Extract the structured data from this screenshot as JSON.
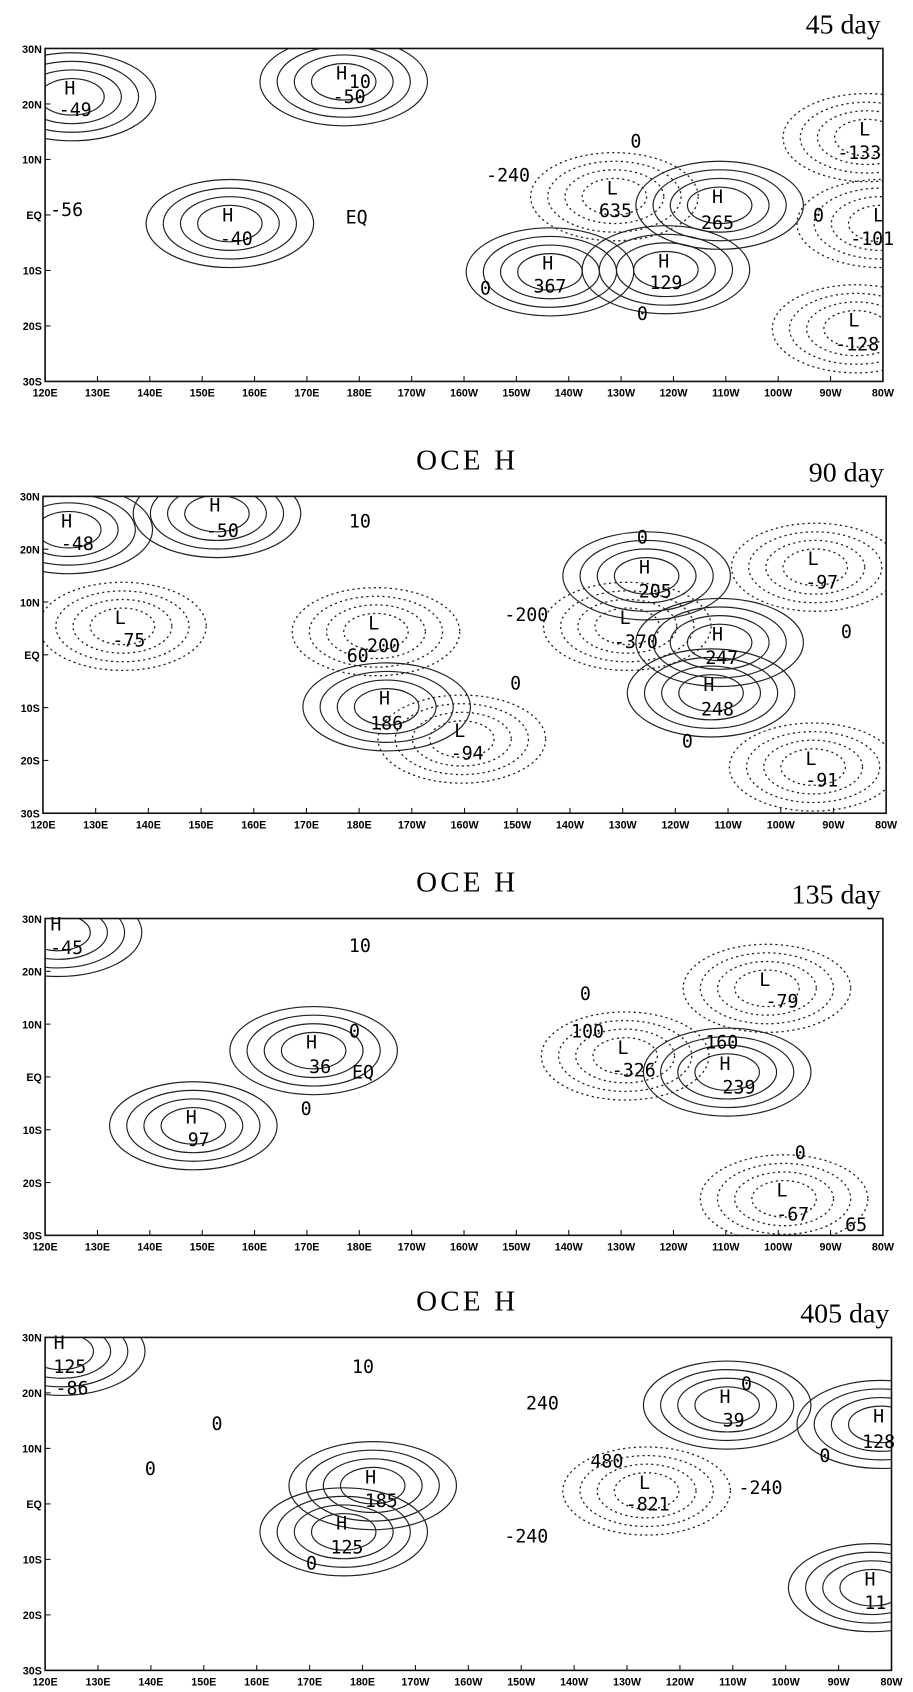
{
  "axis": {
    "xticks": [
      "120E",
      "130E",
      "140E",
      "150E",
      "160E",
      "170E",
      "180E",
      "170W",
      "160W",
      "150W",
      "140W",
      "130W",
      "120W",
      "110W",
      "100W",
      "90W",
      "80W"
    ],
    "yticks": [
      "30N",
      "20N",
      "10N",
      "EQ",
      "10S",
      "20S",
      "30S"
    ]
  },
  "panels": [
    {
      "day": "45 day",
      "labels": [
        "H",
        -49,
        "H",
        10,
        -50,
        "EQ",
        "H",
        -40,
        "L",
        -133,
        "L",
        -101,
        "L",
        -128,
        "H",
        367,
        "H",
        129,
        "H",
        265,
        "L",
        635,
        -240,
        0,
        0,
        0,
        0,
        -56
      ]
    },
    {
      "title": "OCE H",
      "day": "90 day",
      "labels": [
        "H",
        -48,
        "H",
        -50,
        10,
        "L",
        -75,
        "L",
        200,
        60,
        -200,
        "L",
        -370,
        "H",
        205,
        "H",
        247,
        "H",
        248,
        "H",
        186,
        "L",
        -94,
        "L",
        -97,
        "L",
        -91,
        0,
        0,
        0,
        0
      ]
    },
    {
      "title": "OCE H",
      "day": "135 day",
      "labels": [
        "H",
        -45,
        10,
        "H",
        36,
        "EQ",
        "H",
        97,
        "L",
        -326,
        100,
        160,
        "H",
        239,
        "L",
        -79,
        "L",
        -67,
        65,
        0,
        0,
        0,
        0
      ]
    },
    {
      "title": "OCE H",
      "day": "405 day",
      "labels": [
        "H",
        125,
        -86,
        10,
        240,
        "H",
        39,
        "H",
        128,
        480,
        "L",
        -821,
        -240,
        "H",
        185,
        "H",
        125,
        -240,
        "H",
        11,
        0,
        0,
        0,
        0,
        0
      ]
    }
  ]
}
